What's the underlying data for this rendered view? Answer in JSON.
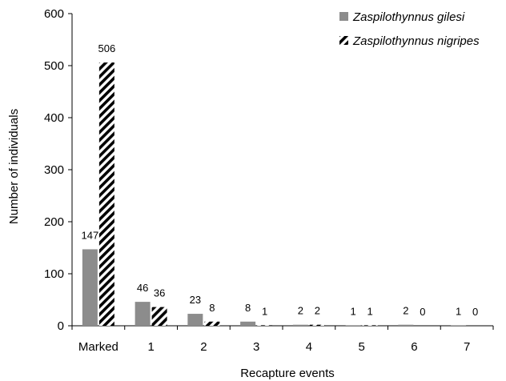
{
  "chart_data": {
    "type": "bar",
    "categories": [
      "Marked",
      "1",
      "2",
      "3",
      "4",
      "5",
      "6",
      "7"
    ],
    "series": [
      {
        "name": "Zaspilothynnus gilesi",
        "values": [
          147,
          46,
          23,
          8,
          2,
          1,
          2,
          1
        ],
        "color": "#8c8c8c",
        "fill": "solid-grey"
      },
      {
        "name": "Zaspilothynnus nigripes",
        "values": [
          506,
          36,
          8,
          1,
          2,
          1,
          0,
          0
        ],
        "color": "#000000",
        "fill": "black-white-diagonal-hatch"
      }
    ],
    "xlabel": "Recapture events",
    "ylabel": "Number of individuals",
    "ylim": [
      0,
      600
    ],
    "yticks": [
      0,
      100,
      200,
      300,
      400,
      500,
      600
    ],
    "grid": false,
    "legend_position": "top-right",
    "data_labels": true
  }
}
